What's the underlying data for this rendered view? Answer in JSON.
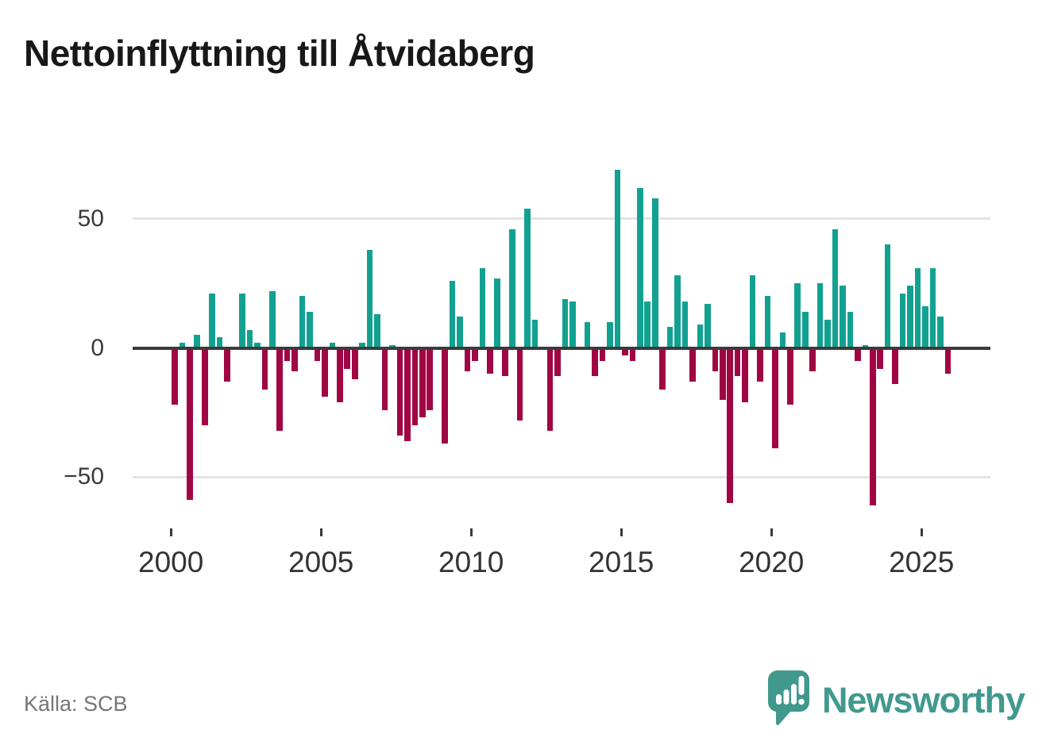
{
  "header": {
    "title": "Nettoinflyttning till Åtvidaberg"
  },
  "footer": {
    "source": "Källa: SCB",
    "brand_name": "Newsworthy",
    "brand_color": "#41998d"
  },
  "chart_data": {
    "type": "bar",
    "title": "Nettoinflyttning till Åtvidaberg",
    "frequency": "quarterly",
    "start_year": 2000,
    "end": "2025-Q4",
    "xlabel": "",
    "ylabel": "",
    "ylim": [
      -70,
      80
    ],
    "grid": "horizontal",
    "x_tick_years": [
      2000,
      2005,
      2010,
      2015,
      2020,
      2025
    ],
    "y_ticks": [
      {
        "value": 50,
        "label": "50"
      },
      {
        "value": 0,
        "label": "0"
      },
      {
        "value": -50,
        "label": "−50"
      }
    ],
    "positive_color": "#12a191",
    "negative_color": "#a00644",
    "values": [
      -22,
      2,
      -59,
      5,
      -30,
      21,
      4,
      -13,
      0,
      21,
      7,
      2,
      -16,
      22,
      -32,
      -5,
      -9,
      20,
      14,
      -5,
      -19,
      2,
      -21,
      -8,
      -12,
      2,
      38,
      13,
      -24,
      1,
      -34,
      -36,
      -30,
      -27,
      -24,
      0,
      -37,
      26,
      12,
      -9,
      -5,
      31,
      -10,
      27,
      -11,
      46,
      -28,
      54,
      11,
      0,
      -32,
      -11,
      19,
      18,
      0,
      10,
      -11,
      -5,
      10,
      69,
      -3,
      -5,
      62,
      18,
      58,
      -16,
      8,
      28,
      18,
      -13,
      9,
      17,
      -9,
      -20,
      -60,
      -11,
      -21,
      28,
      -13,
      20,
      -39,
      6,
      -22,
      25,
      14,
      -9,
      25,
      11,
      46,
      24,
      14,
      -5,
      1,
      -61,
      -8,
      40,
      -14,
      21,
      24,
      31,
      16,
      31,
      12,
      -10
    ]
  }
}
